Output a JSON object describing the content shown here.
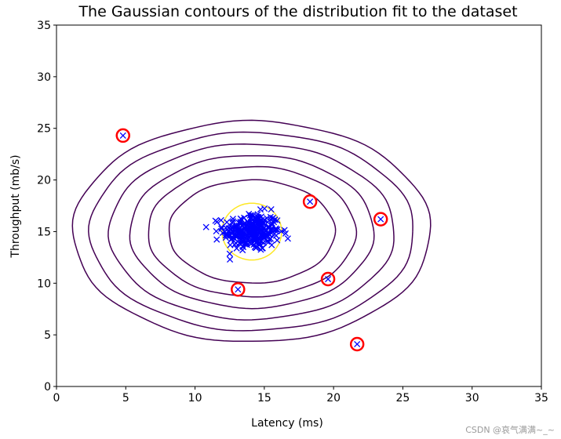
{
  "chart_data": {
    "type": "scatter",
    "title": "The Gaussian contours of the distribution fit to the dataset",
    "xlabel": "Latency (ms)",
    "ylabel": "Throughput (mb/s)",
    "xlim": [
      0,
      35
    ],
    "ylim": [
      0,
      35
    ],
    "xticks": [
      0,
      5,
      10,
      15,
      20,
      25,
      30,
      35
    ],
    "yticks": [
      0,
      5,
      10,
      15,
      20,
      25,
      30,
      35
    ],
    "grid": false,
    "gaussian": {
      "mean": [
        14.1,
        15.0
      ],
      "std": [
        1.36,
        1.32
      ]
    },
    "contours": [
      {
        "level": "inner",
        "color": "#fde725",
        "rx": 2.15,
        "ry": 2.75
      },
      {
        "color": "#440154",
        "rx": 6.0,
        "ry": 5.0
      },
      {
        "color": "#440154",
        "rx": 7.5,
        "ry": 6.3
      },
      {
        "color": "#440154",
        "rx": 8.8,
        "ry": 7.4
      },
      {
        "color": "#440154",
        "rx": 10.3,
        "ry": 8.5
      },
      {
        "color": "#440154",
        "rx": 11.7,
        "ry": 9.6
      },
      {
        "color": "#440154",
        "rx": 12.9,
        "ry": 10.7
      }
    ],
    "points": {
      "marker": "x",
      "color": "#0000ff",
      "count": 300,
      "x_range": [
        10.8,
        16.7
      ],
      "y_range": [
        12.3,
        17.8
      ]
    },
    "anomalies": {
      "marker_color": "#ff0000",
      "values": [
        {
          "x": 4.8,
          "y": 24.3
        },
        {
          "x": 18.3,
          "y": 17.9
        },
        {
          "x": 23.4,
          "y": 16.2
        },
        {
          "x": 19.6,
          "y": 10.4
        },
        {
          "x": 13.1,
          "y": 9.4
        },
        {
          "x": 21.7,
          "y": 4.1
        }
      ]
    }
  },
  "watermark": "CSDN @哀气满满~_~"
}
